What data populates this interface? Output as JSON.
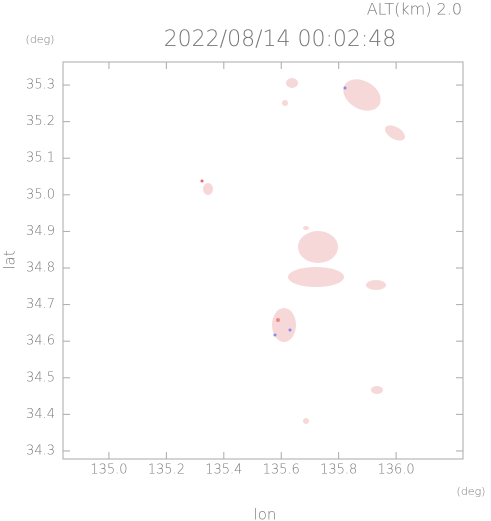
{
  "chart_data": {
    "type": "map",
    "annotation": "ALT(km) 2.0",
    "title": "2022/08/14 00:02:48",
    "ylabel_unit": "(deg)",
    "xlabel_unit": "(deg)",
    "xlabel": "lon",
    "ylabel": "lat",
    "xlim": [
      134.84,
      136.233
    ],
    "ylim": [
      34.278,
      35.363
    ],
    "xticks": [
      {
        "value": 135,
        "label": "135.0"
      },
      135.2,
      135.4,
      135.6,
      135.8,
      {
        "value": 136,
        "label": "136.0"
      }
    ],
    "yticks": [
      34.3,
      34.4,
      34.5,
      34.6,
      34.7,
      34.8,
      34.9,
      {
        "value": 35,
        "label": "35.0"
      },
      35.1,
      35.2,
      35.3
    ]
  }
}
